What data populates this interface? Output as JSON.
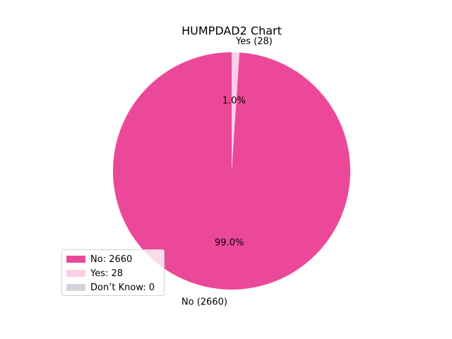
{
  "chart_data": {
    "type": "pie",
    "title": "HUMPDAD2 Chart",
    "start_angle_deg": 90,
    "direction": "counterclockwise",
    "slices": [
      {
        "label": "No",
        "value": 2660,
        "outer_label": "No (2660)",
        "pct_label": "99.0%",
        "color": "#ec4899"
      },
      {
        "label": "Yes",
        "value": 28,
        "outer_label": "Yes (28)",
        "pct_label": "1.0%",
        "color": "#fbcfe8"
      },
      {
        "label": "Don’t Know",
        "value": 0,
        "outer_label": "",
        "pct_label": "",
        "color": "#d1d5db"
      }
    ],
    "legend": {
      "position": "lower-left",
      "entries": [
        {
          "text": "No: 2660",
          "color": "#ec4899"
        },
        {
          "text": "Yes: 28",
          "color": "#fbcfe8"
        },
        {
          "text": "Don’t Know: 0",
          "color": "#d1d5db"
        }
      ]
    }
  }
}
